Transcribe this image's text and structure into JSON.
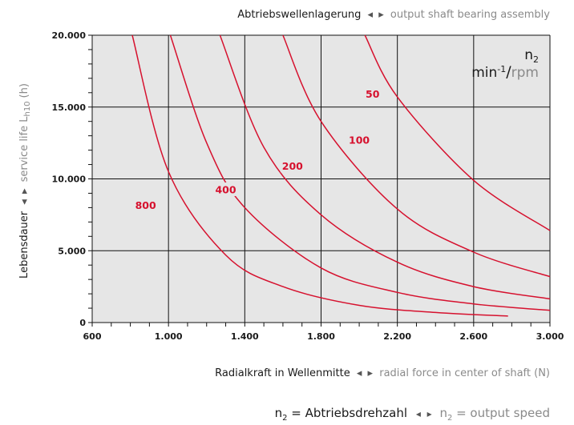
{
  "chart_data": {
    "type": "line",
    "title_de": "Abtriebswellenlagerung",
    "title_en": "output shaft bearing assembly",
    "xlabel_de": "Radialkraft in Wellenmitte",
    "xlabel_en": "radial force in center of shaft (N)",
    "ylabel_de": "Lebensdauer",
    "ylabel_en": "service life L",
    "ylabel_sub": "h10",
    "ylabel_unit": "(h)",
    "unit_var": "n",
    "unit_sub": "2",
    "unit_a": "min",
    "unit_a_sup": "-1",
    "unit_sep": "/",
    "unit_b": "rpm",
    "footer_var_de": "n",
    "footer_sub_de": "2",
    "footer_de": " = Abtriebsdrehzahl",
    "footer_var_en": "n",
    "footer_sub_en": "2",
    "footer_en": " = output speed",
    "xlim": [
      600,
      3000
    ],
    "ylim": [
      0,
      20000
    ],
    "x_ticks": [
      600,
      1000,
      1400,
      1800,
      2200,
      2600,
      3000
    ],
    "x_tick_labels": [
      "600",
      "1.000",
      "1.400",
      "1.800",
      "2.200",
      "2.600",
      "3.000"
    ],
    "y_ticks": [
      0,
      5000,
      10000,
      15000,
      20000
    ],
    "y_tick_labels": [
      "0",
      "5.000",
      "10.000",
      "15.000",
      "20.000"
    ],
    "grid": true,
    "series": [
      {
        "name": "800",
        "points": [
          [
            810,
            20000
          ],
          [
            1000,
            10500
          ],
          [
            1300,
            4700
          ],
          [
            1600,
            2500
          ],
          [
            2000,
            1200
          ],
          [
            2400,
            700
          ],
          [
            2780,
            450
          ]
        ]
      },
      {
        "name": "400",
        "points": [
          [
            1010,
            20000
          ],
          [
            1200,
            12500
          ],
          [
            1400,
            8000
          ],
          [
            1800,
            3800
          ],
          [
            2200,
            2100
          ],
          [
            2600,
            1300
          ],
          [
            3000,
            850
          ]
        ]
      },
      {
        "name": "200",
        "points": [
          [
            1270,
            20000
          ],
          [
            1500,
            12200
          ],
          [
            1800,
            7500
          ],
          [
            2200,
            4200
          ],
          [
            2600,
            2500
          ],
          [
            3000,
            1650
          ]
        ]
      },
      {
        "name": "100",
        "points": [
          [
            1600,
            20000
          ],
          [
            1800,
            14000
          ],
          [
            2200,
            7900
          ],
          [
            2600,
            4900
          ],
          [
            3000,
            3200
          ]
        ]
      },
      {
        "name": "50",
        "points": [
          [
            2030,
            20000
          ],
          [
            2200,
            15700
          ],
          [
            2600,
            9900
          ],
          [
            3000,
            6400
          ]
        ]
      }
    ],
    "labels": [
      {
        "text": "800",
        "x": 880,
        "y": 8150
      },
      {
        "text": "400",
        "x": 1300,
        "y": 9250
      },
      {
        "text": "200",
        "x": 1650,
        "y": 10900
      },
      {
        "text": "100",
        "x": 2000,
        "y": 12700
      },
      {
        "text": "50",
        "x": 2070,
        "y": 15900
      }
    ]
  }
}
